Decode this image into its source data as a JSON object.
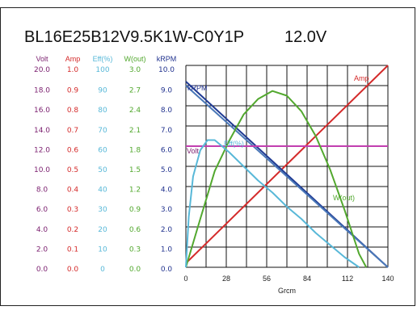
{
  "chart_data": {
    "type": "line",
    "title": "BL16E25B12V9.5K1W-C0Y1P",
    "voltage_label": "12.0V",
    "xlabel": "Grcm",
    "x_ticks": [
      "0",
      "28",
      "56",
      "84",
      "112",
      "140"
    ],
    "xlim": [
      0,
      140
    ],
    "axes": [
      {
        "key": "volt",
        "header": "Volt",
        "color": "#7a1e6e",
        "ticks": [
          "0.0",
          "2.0",
          "4.0",
          "6.0",
          "8.0",
          "10.0",
          "12.0",
          "14.0",
          "16.0",
          "18.0",
          "20.0"
        ]
      },
      {
        "key": "amp",
        "header": "Amp",
        "color": "#d42a2a",
        "ticks": [
          "0.0",
          "0.1",
          "0.2",
          "0.3",
          "0.4",
          "0.5",
          "0.6",
          "0.7",
          "0.8",
          "0.9",
          "1.0"
        ]
      },
      {
        "key": "eff",
        "header": "Eff(%)",
        "color": "#58b8d8",
        "ticks": [
          "0",
          "10",
          "20",
          "30",
          "40",
          "50",
          "60",
          "70",
          "80",
          "90",
          "100"
        ]
      },
      {
        "key": "wout",
        "header": "W(out)",
        "color": "#52a82e",
        "ticks": [
          "0.0",
          "0.3",
          "0.6",
          "0.9",
          "1.2",
          "1.5",
          "1.8",
          "2.1",
          "2.4",
          "2.7",
          "3.0"
        ]
      },
      {
        "key": "krpm",
        "header": "kRPM",
        "color": "#22338f",
        "ticks": [
          "0.0",
          "1.0",
          "2.0",
          "3.0",
          "4.0",
          "5.0",
          "6.0",
          "7.0",
          "8.0",
          "9.0",
          "10.0"
        ]
      }
    ],
    "series": [
      {
        "name": "Amp",
        "axis": "amp",
        "color": "#d42a2a",
        "x": [
          0,
          145
        ],
        "y": [
          0.02,
          1.0
        ]
      },
      {
        "name": "kRPM",
        "axis": "krpm",
        "color": "#1f3a93",
        "x": [
          0,
          145
        ],
        "y": [
          9.2,
          0.0
        ]
      },
      {
        "name": "kRPM",
        "axis": "krpm",
        "color": "#4a78b8",
        "x": [
          0,
          145
        ],
        "y": [
          9.0,
          0.0
        ]
      },
      {
        "name": "Volt",
        "axis": "volt",
        "color": "#c23fb0",
        "x": [
          0,
          145
        ],
        "y": [
          12.0,
          12.0
        ]
      },
      {
        "name": "W(out)",
        "axis": "wout",
        "color": "#52a82e",
        "x": [
          0,
          10,
          20,
          30,
          40,
          50,
          60,
          70,
          80,
          90,
          100,
          110,
          120,
          125
        ],
        "y": [
          0.0,
          0.72,
          1.43,
          1.88,
          2.27,
          2.5,
          2.62,
          2.55,
          2.32,
          1.95,
          1.45,
          0.85,
          0.2,
          0.0
        ]
      },
      {
        "name": "Eff(%)",
        "axis": "eff",
        "color": "#58b8d8",
        "x": [
          0,
          2,
          5,
          10,
          15,
          20,
          25,
          30,
          40,
          50,
          60,
          70,
          80,
          90,
          100,
          110,
          120
        ],
        "y": [
          0,
          25,
          45,
          58,
          63,
          63,
          60,
          57,
          50,
          43,
          37,
          30,
          24,
          17,
          11,
          5,
          0
        ]
      }
    ],
    "annotations": [
      "kRPM",
      "Amp",
      "Volt",
      "Eff(%)",
      "W(out)"
    ]
  }
}
